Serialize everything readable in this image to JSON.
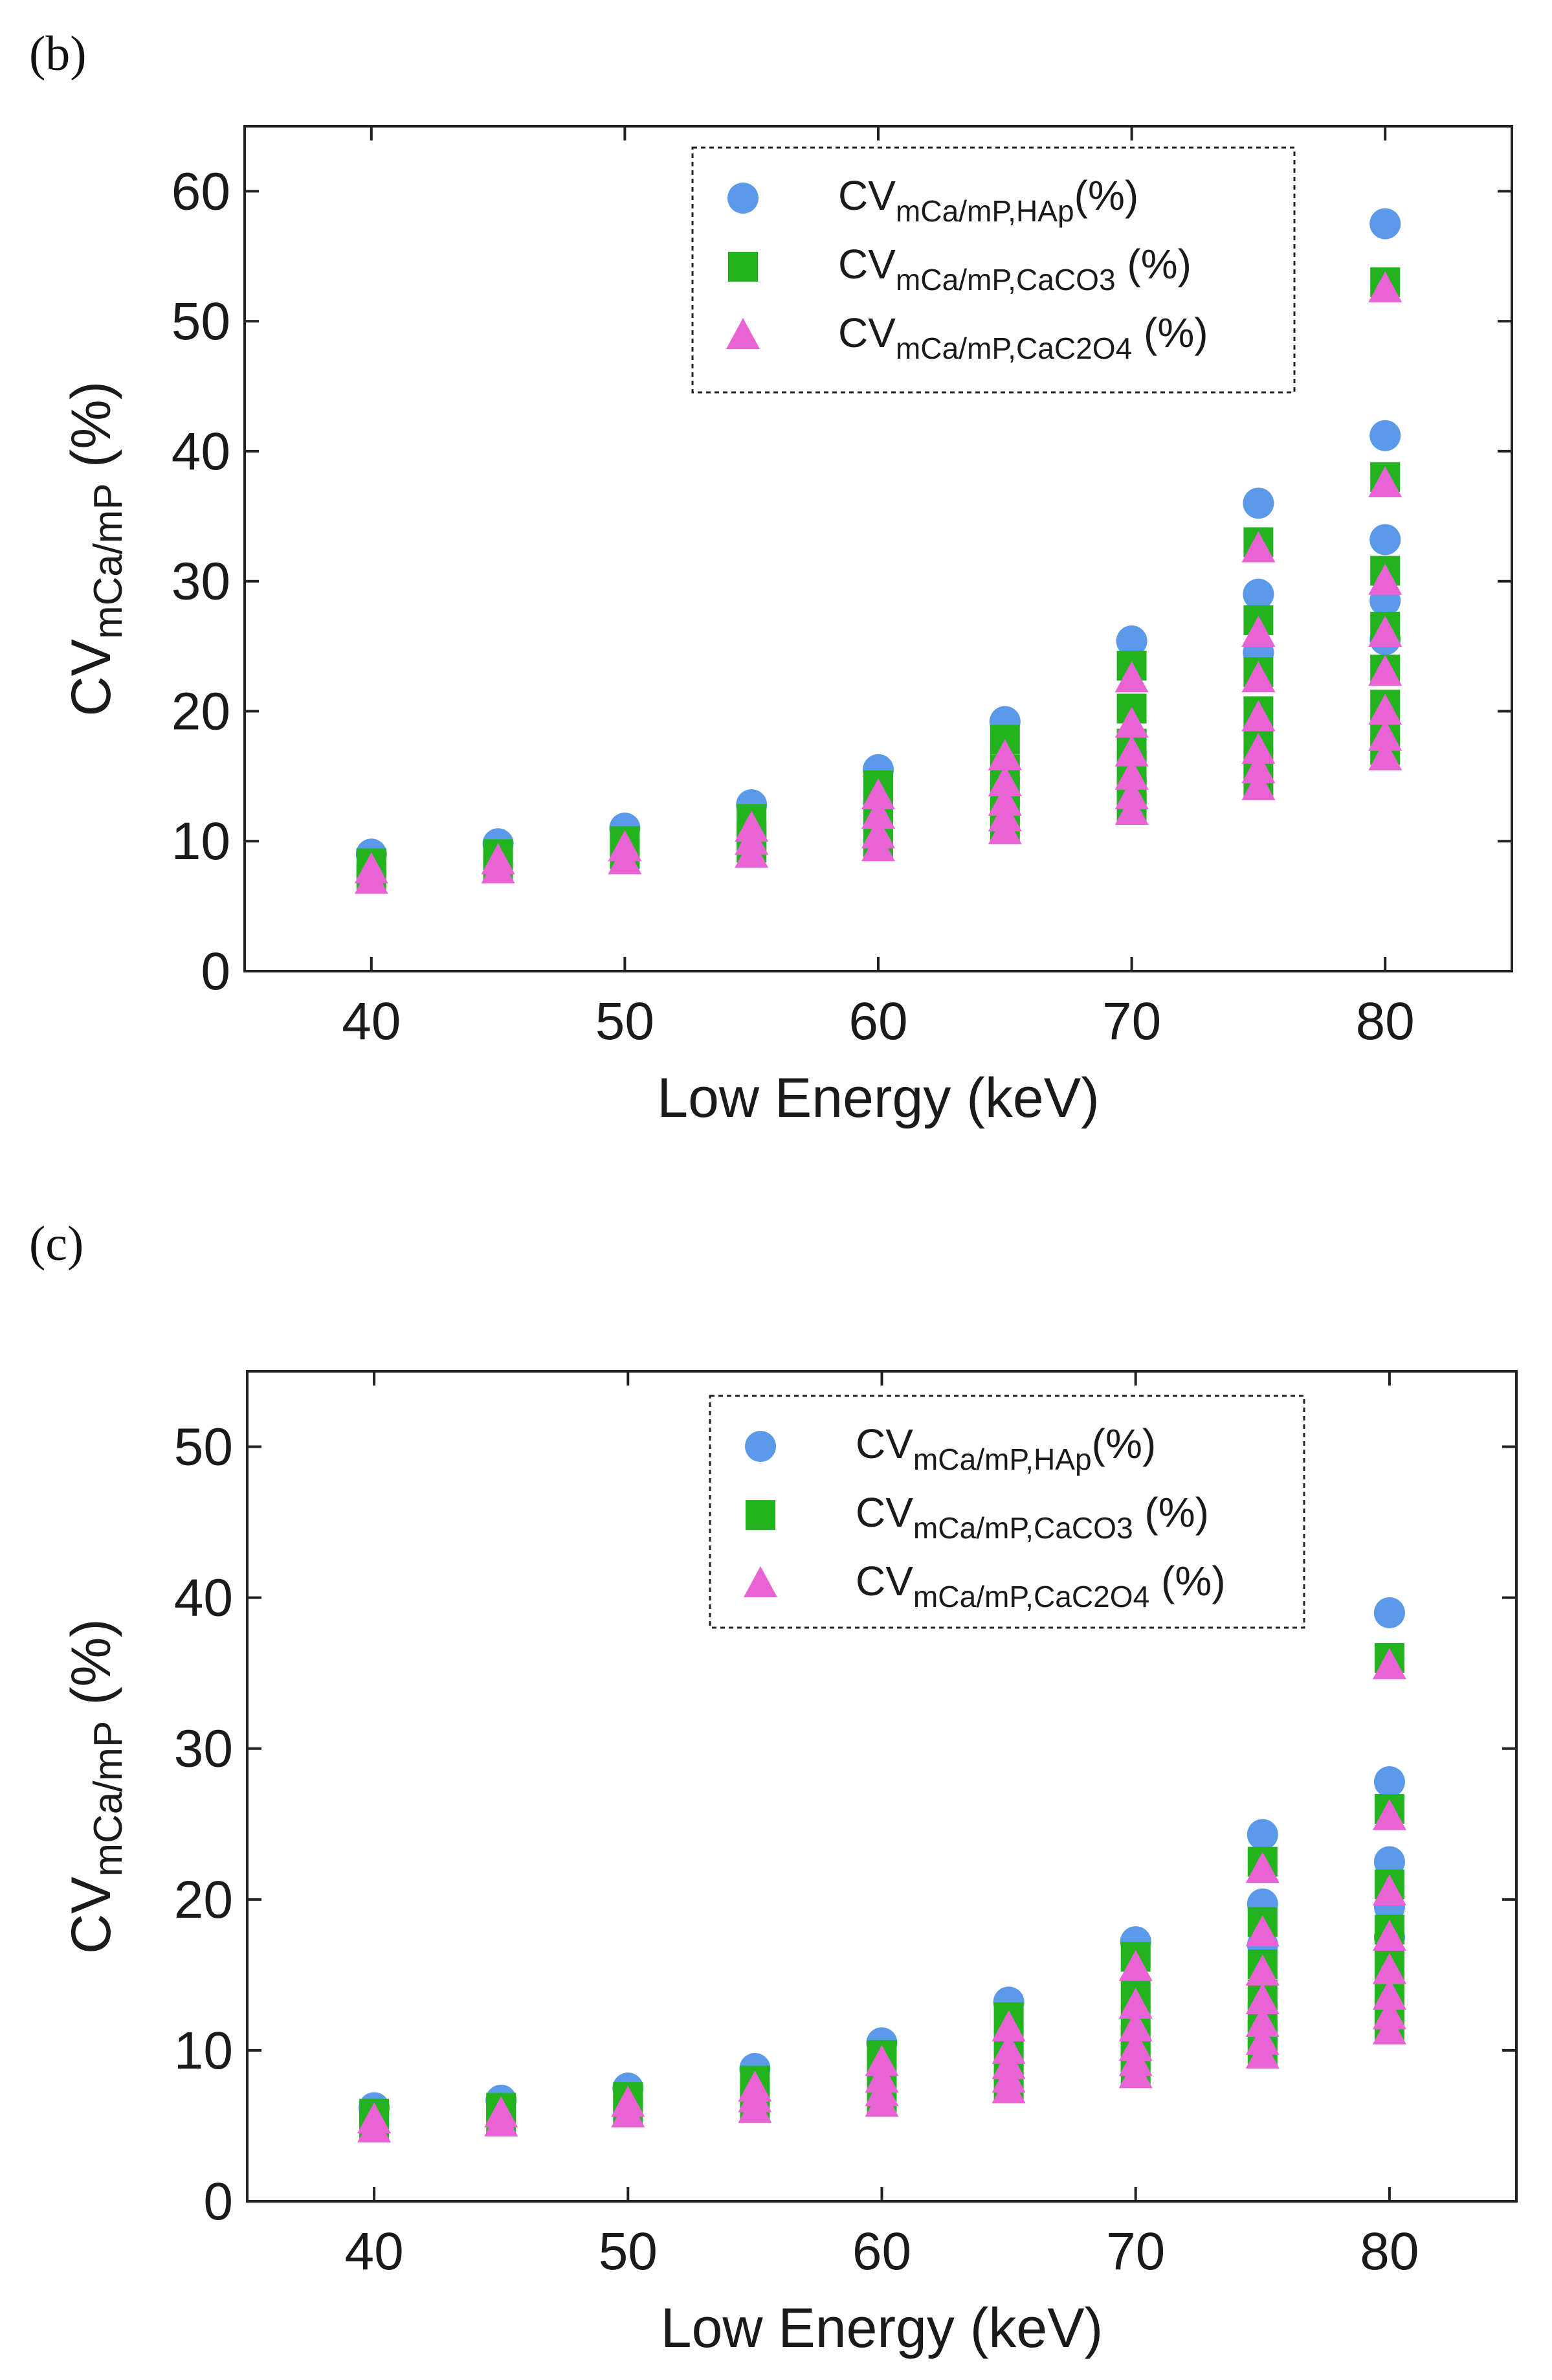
{
  "colors": {
    "hap": "#5b9ae9",
    "caco3": "#22b31e",
    "cac2o4": "#ea63d4"
  },
  "chart_data": [
    {
      "panel_label": "(b)",
      "type": "scatter",
      "xlabel": "Low Energy (keV)",
      "ylabel": {
        "main": "CV",
        "sub": "mCa/mP",
        "unit": " (%)"
      },
      "xlim": [
        35,
        85
      ],
      "ylim": [
        0,
        65
      ],
      "xticks": [
        40,
        50,
        60,
        70,
        80
      ],
      "yticks": [
        0,
        10,
        20,
        30,
        40,
        50,
        60
      ],
      "legend_position": "top-right",
      "series": [
        {
          "key": "hap",
          "marker": "circle",
          "legend": {
            "main": "CV",
            "sub": "mCa/mP,HAp",
            "unit": "(%)"
          },
          "points": [
            [
              40,
              9.0
            ],
            [
              45,
              9.8
            ],
            [
              50,
              11.0
            ],
            [
              55,
              12.8
            ],
            [
              60,
              15.5
            ],
            [
              65,
              19.2
            ],
            [
              70,
              25.4
            ],
            [
              75,
              36.0
            ],
            [
              75,
              29.0
            ],
            [
              75,
              24.5
            ],
            [
              80,
              57.5
            ],
            [
              80,
              41.2
            ],
            [
              80,
              33.2
            ],
            [
              80,
              28.5
            ],
            [
              80,
              25.5
            ]
          ]
        },
        {
          "key": "caco3",
          "marker": "square",
          "legend": {
            "main": "CV",
            "sub": "mCa/mP,CaCO3",
            "unit": " (%)"
          },
          "points": [
            [
              40,
              8.3
            ],
            [
              40,
              7.3
            ],
            [
              45,
              9.0
            ],
            [
              45,
              8.0
            ],
            [
              50,
              10.0
            ],
            [
              50,
              9.0
            ],
            [
              55,
              11.7
            ],
            [
              55,
              10.5
            ],
            [
              55,
              9.5
            ],
            [
              60,
              14.3
            ],
            [
              60,
              12.5
            ],
            [
              60,
              11.0
            ],
            [
              60,
              9.8
            ],
            [
              65,
              17.8
            ],
            [
              65,
              15.5
            ],
            [
              65,
              13.8
            ],
            [
              65,
              12.3
            ],
            [
              65,
              11.0
            ],
            [
              70,
              23.5
            ],
            [
              70,
              20.2
            ],
            [
              70,
              17.5
            ],
            [
              70,
              15.5
            ],
            [
              70,
              13.8
            ],
            [
              70,
              12.5
            ],
            [
              75,
              33.0
            ],
            [
              75,
              27.0
            ],
            [
              75,
              23.0
            ],
            [
              75,
              20.0
            ],
            [
              75,
              17.8
            ],
            [
              75,
              16.0
            ],
            [
              75,
              14.5
            ],
            [
              80,
              53.0
            ],
            [
              80,
              38.0
            ],
            [
              80,
              30.8
            ],
            [
              80,
              26.5
            ],
            [
              80,
              23.2
            ],
            [
              80,
              20.5
            ],
            [
              80,
              18.5
            ],
            [
              80,
              17.0
            ]
          ]
        },
        {
          "key": "cac2o4",
          "marker": "triangle",
          "legend": {
            "main": "CV",
            "sub": "mCa/mP,CaC2O4",
            "unit": " (%)"
          },
          "points": [
            [
              40,
              7.8
            ],
            [
              40,
              7.0
            ],
            [
              45,
              8.5
            ],
            [
              45,
              7.8
            ],
            [
              50,
              9.5
            ],
            [
              50,
              8.5
            ],
            [
              55,
              11.0
            ],
            [
              55,
              10.0
            ],
            [
              55,
              9.0
            ],
            [
              60,
              13.5
            ],
            [
              60,
              12.0
            ],
            [
              60,
              10.5
            ],
            [
              60,
              9.5
            ],
            [
              65,
              16.5
            ],
            [
              65,
              14.5
            ],
            [
              65,
              13.0
            ],
            [
              65,
              11.8
            ],
            [
              65,
              10.8
            ],
            [
              70,
              22.5
            ],
            [
              70,
              19.0
            ],
            [
              70,
              16.8
            ],
            [
              70,
              15.0
            ],
            [
              70,
              13.5
            ],
            [
              70,
              12.3
            ],
            [
              75,
              32.5
            ],
            [
              75,
              26.0
            ],
            [
              75,
              22.5
            ],
            [
              75,
              19.5
            ],
            [
              75,
              17.0
            ],
            [
              75,
              15.5
            ],
            [
              75,
              14.2
            ],
            [
              80,
              52.5
            ],
            [
              80,
              37.5
            ],
            [
              80,
              30.0
            ],
            [
              80,
              26.0
            ],
            [
              80,
              23.0
            ],
            [
              80,
              20.0
            ],
            [
              80,
              18.0
            ],
            [
              80,
              16.5
            ]
          ]
        }
      ]
    },
    {
      "panel_label": "(c)",
      "type": "scatter",
      "xlabel": "Low Energy (keV)",
      "ylabel": {
        "main": "CV",
        "sub": "mCa/mP",
        "unit": " (%)"
      },
      "xlim": [
        35,
        85
      ],
      "ylim": [
        0,
        55
      ],
      "xticks": [
        40,
        50,
        60,
        70,
        80
      ],
      "yticks": [
        0,
        10,
        20,
        30,
        40,
        50
      ],
      "legend_position": "top-right",
      "series": [
        {
          "key": "hap",
          "marker": "circle",
          "legend": {
            "main": "CV",
            "sub": "mCa/mP,HAp",
            "unit": "(%)"
          },
          "points": [
            [
              40,
              6.2
            ],
            [
              45,
              6.7
            ],
            [
              50,
              7.5
            ],
            [
              55,
              8.8
            ],
            [
              60,
              10.5
            ],
            [
              65,
              13.2
            ],
            [
              70,
              17.2
            ],
            [
              75,
              24.3
            ],
            [
              75,
              19.7
            ],
            [
              75,
              17.0
            ],
            [
              80,
              39.0
            ],
            [
              80,
              27.8
            ],
            [
              80,
              22.5
            ],
            [
              80,
              19.5
            ],
            [
              80,
              17.5
            ]
          ]
        },
        {
          "key": "caco3",
          "marker": "square",
          "legend": {
            "main": "CV",
            "sub": "mCa/mP,CaCO3",
            "unit": " (%)"
          },
          "points": [
            [
              40,
              5.8
            ],
            [
              40,
              5.0
            ],
            [
              45,
              6.2
            ],
            [
              45,
              5.4
            ],
            [
              50,
              6.9
            ],
            [
              50,
              6.1
            ],
            [
              55,
              8.0
            ],
            [
              55,
              7.1
            ],
            [
              55,
              6.4
            ],
            [
              60,
              9.7
            ],
            [
              60,
              8.5
            ],
            [
              60,
              7.5
            ],
            [
              60,
              6.7
            ],
            [
              65,
              12.2
            ],
            [
              65,
              10.6
            ],
            [
              65,
              9.4
            ],
            [
              65,
              8.4
            ],
            [
              65,
              7.6
            ],
            [
              70,
              16.2
            ],
            [
              70,
              13.8
            ],
            [
              70,
              12.0
            ],
            [
              70,
              10.6
            ],
            [
              70,
              9.5
            ],
            [
              70,
              8.6
            ],
            [
              75,
              22.5
            ],
            [
              75,
              18.5
            ],
            [
              75,
              15.7
            ],
            [
              75,
              13.7
            ],
            [
              75,
              12.2
            ],
            [
              75,
              11.0
            ],
            [
              75,
              10.0
            ],
            [
              80,
              36.0
            ],
            [
              80,
              26.0
            ],
            [
              80,
              21.0
            ],
            [
              80,
              18.0
            ],
            [
              80,
              15.8
            ],
            [
              80,
              14.0
            ],
            [
              80,
              12.6
            ],
            [
              80,
              11.6
            ]
          ]
        },
        {
          "key": "cac2o4",
          "marker": "triangle",
          "legend": {
            "main": "CV",
            "sub": "mCa/mP,CaC2O4",
            "unit": " (%)"
          },
          "points": [
            [
              40,
              5.4
            ],
            [
              40,
              4.8
            ],
            [
              45,
              5.8
            ],
            [
              45,
              5.2
            ],
            [
              50,
              6.5
            ],
            [
              50,
              5.8
            ],
            [
              55,
              7.5
            ],
            [
              55,
              6.8
            ],
            [
              55,
              6.1
            ],
            [
              60,
              9.2
            ],
            [
              60,
              8.1
            ],
            [
              60,
              7.2
            ],
            [
              60,
              6.5
            ],
            [
              65,
              11.5
            ],
            [
              65,
              10.0
            ],
            [
              65,
              9.0
            ],
            [
              65,
              8.1
            ],
            [
              65,
              7.4
            ],
            [
              70,
              15.5
            ],
            [
              70,
              13.0
            ],
            [
              70,
              11.5
            ],
            [
              70,
              10.2
            ],
            [
              70,
              9.2
            ],
            [
              70,
              8.4
            ],
            [
              75,
              22.0
            ],
            [
              75,
              17.8
            ],
            [
              75,
              15.2
            ],
            [
              75,
              13.3
            ],
            [
              75,
              11.8
            ],
            [
              75,
              10.6
            ],
            [
              75,
              9.7
            ],
            [
              80,
              35.5
            ],
            [
              80,
              25.5
            ],
            [
              80,
              20.5
            ],
            [
              80,
              17.5
            ],
            [
              80,
              15.3
            ],
            [
              80,
              13.6
            ],
            [
              80,
              12.3
            ],
            [
              80,
              11.3
            ]
          ]
        }
      ]
    }
  ]
}
